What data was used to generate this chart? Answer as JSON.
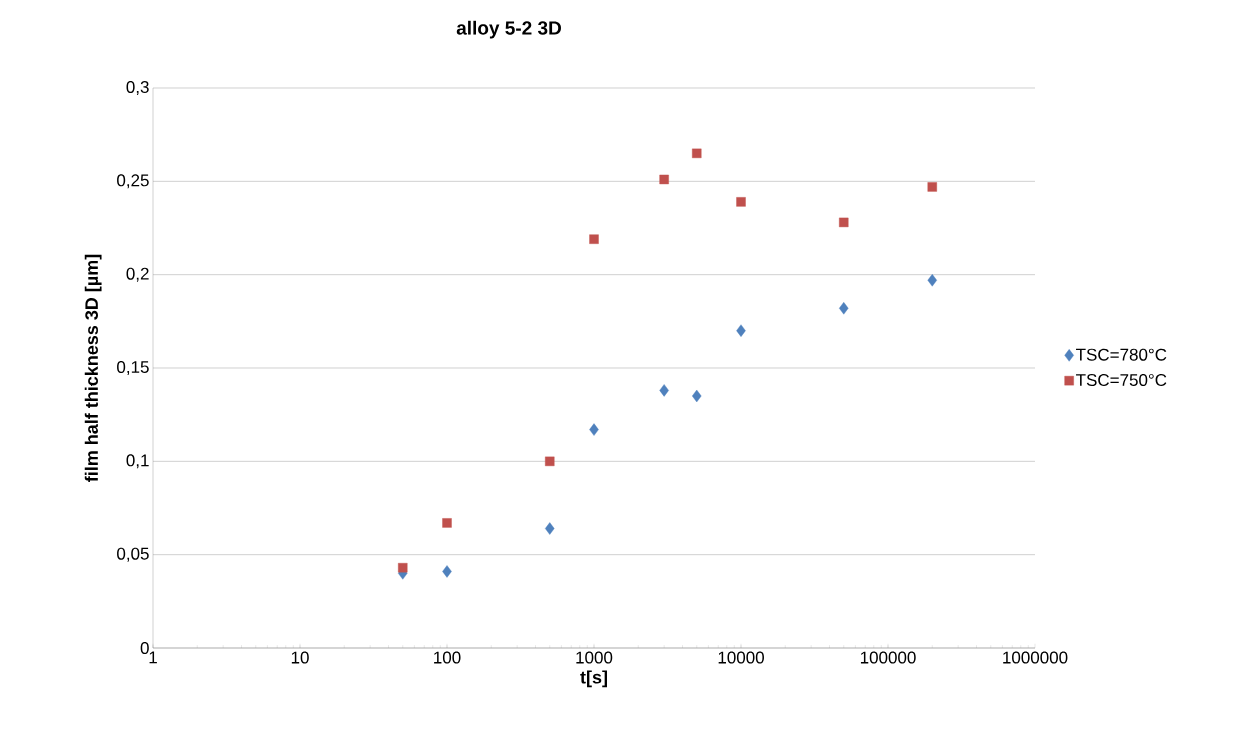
{
  "chart_data": {
    "type": "scatter",
    "title": "alloy 5-2 3D",
    "xlabel": "t[s]",
    "ylabel": "film half thickness 3D [µm]",
    "log": "x",
    "grid": "y",
    "legend": "right",
    "xlim": [
      1,
      1000000
    ],
    "xticks": [
      1,
      10,
      100,
      1000,
      10000,
      100000,
      1000000
    ],
    "ylim": [
      0,
      0.3
    ],
    "yticks": [
      0,
      {
        "value": 0.05,
        "label": "0,05"
      },
      {
        "value": 0.1,
        "label": "0,1"
      },
      {
        "value": 0.15,
        "label": "0,15"
      },
      {
        "value": 0.2,
        "label": "0,2"
      },
      {
        "value": 0.25,
        "label": "0,25"
      },
      {
        "value": 0.3,
        "label": "0,3"
      }
    ],
    "series": [
      {
        "name": "TSC=780°C",
        "color": "#4f81bd",
        "marker": "diamond",
        "x": [
          50,
          100,
          500,
          1000,
          3000,
          5000,
          10000,
          50000,
          200000
        ],
        "values": [
          0.04,
          0.041,
          0.064,
          0.117,
          0.138,
          0.135,
          0.17,
          0.182,
          0.197
        ]
      },
      {
        "name": "TSC=750°C",
        "color": "#c0504d",
        "marker": "square",
        "x": [
          50,
          100,
          500,
          1000,
          3000,
          5000,
          10000,
          50000,
          200000
        ],
        "values": [
          0.043,
          0.067,
          0.1,
          0.219,
          0.251,
          0.265,
          0.239,
          0.228,
          0.247
        ]
      }
    ]
  }
}
